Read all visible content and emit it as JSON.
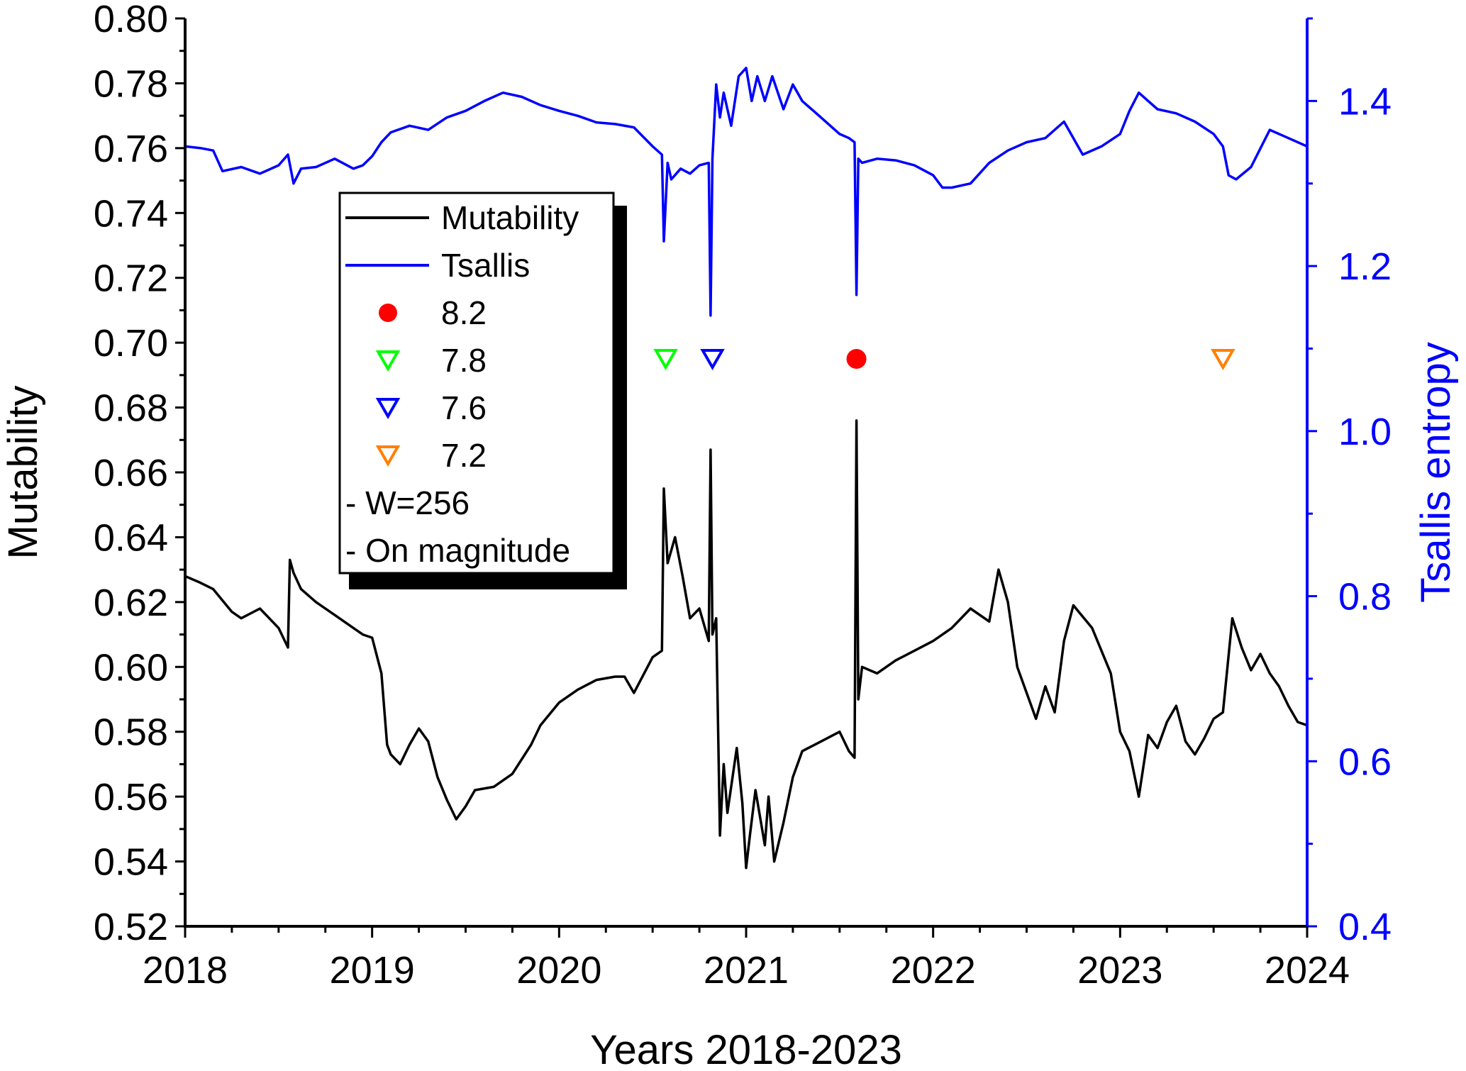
{
  "chart_data": {
    "type": "line",
    "xlabel": "Years 2018-2023",
    "ylabel_left": "Mutability",
    "ylabel_right": "Tsallis entropy",
    "x_ticks": [
      "2018",
      "2019",
      "2020",
      "2021",
      "2022",
      "2023",
      "2024"
    ],
    "xlim": [
      2018,
      2024
    ],
    "ylim_left": [
      0.52,
      0.8
    ],
    "ylim_right": [
      0.4,
      1.5
    ],
    "y_ticks_left": [
      "0.52",
      "0.54",
      "0.56",
      "0.58",
      "0.60",
      "0.62",
      "0.64",
      "0.66",
      "0.68",
      "0.70",
      "0.72",
      "0.74",
      "0.76",
      "0.78",
      "0.80"
    ],
    "y_ticks_right": [
      "0.4",
      "0.6",
      "0.8",
      "1.0",
      "1.2",
      "1.4"
    ],
    "grid": false,
    "legend_placement": "upper-left-center",
    "colors": {
      "mutability": "#000000",
      "tsallis": "#0000ff",
      "m82": "#ff0000",
      "m78": "#00ff00",
      "m76": "#0000ff",
      "m72": "#ff8000"
    },
    "series": [
      {
        "name": "Mutability",
        "axis": "left",
        "x": [
          2018.0,
          2018.08,
          2018.15,
          2018.25,
          2018.3,
          2018.4,
          2018.5,
          2018.55,
          2018.56,
          2018.58,
          2018.62,
          2018.7,
          2018.8,
          2018.9,
          2018.95,
          2019.0,
          2019.05,
          2019.08,
          2019.1,
          2019.15,
          2019.2,
          2019.25,
          2019.3,
          2019.35,
          2019.4,
          2019.45,
          2019.5,
          2019.55,
          2019.65,
          2019.75,
          2019.85,
          2019.9,
          2020.0,
          2020.1,
          2020.2,
          2020.3,
          2020.35,
          2020.4,
          2020.5,
          2020.55,
          2020.56,
          2020.58,
          2020.62,
          2020.66,
          2020.7,
          2020.75,
          2020.8,
          2020.81,
          2020.82,
          2020.84,
          2020.86,
          2020.88,
          2020.9,
          2020.95,
          2020.98,
          2021.0,
          2021.02,
          2021.05,
          2021.1,
          2021.12,
          2021.15,
          2021.2,
          2021.25,
          2021.3,
          2021.4,
          2021.5,
          2021.55,
          2021.58,
          2021.59,
          2021.6,
          2021.61,
          2021.62,
          2021.7,
          2021.8,
          2021.9,
          2022.0,
          2022.1,
          2022.2,
          2022.3,
          2022.35,
          2022.4,
          2022.45,
          2022.5,
          2022.55,
          2022.6,
          2022.65,
          2022.7,
          2022.75,
          2022.85,
          2022.95,
          2023.0,
          2023.05,
          2023.1,
          2023.15,
          2023.2,
          2023.25,
          2023.3,
          2023.35,
          2023.4,
          2023.45,
          2023.5,
          2023.55,
          2023.6,
          2023.65,
          2023.7,
          2023.75,
          2023.8,
          2023.85,
          2023.9,
          2023.95,
          2024.0
        ],
        "values": [
          0.628,
          0.626,
          0.624,
          0.617,
          0.615,
          0.618,
          0.612,
          0.606,
          0.633,
          0.629,
          0.624,
          0.62,
          0.616,
          0.612,
          0.61,
          0.609,
          0.598,
          0.576,
          0.573,
          0.57,
          0.576,
          0.581,
          0.577,
          0.566,
          0.559,
          0.553,
          0.557,
          0.562,
          0.563,
          0.567,
          0.576,
          0.582,
          0.589,
          0.593,
          0.596,
          0.597,
          0.597,
          0.592,
          0.603,
          0.605,
          0.655,
          0.632,
          0.64,
          0.628,
          0.615,
          0.618,
          0.608,
          0.667,
          0.61,
          0.615,
          0.548,
          0.57,
          0.555,
          0.575,
          0.558,
          0.538,
          0.548,
          0.562,
          0.545,
          0.56,
          0.54,
          0.552,
          0.566,
          0.574,
          0.577,
          0.58,
          0.574,
          0.572,
          0.676,
          0.59,
          0.595,
          0.6,
          0.598,
          0.602,
          0.605,
          0.608,
          0.612,
          0.618,
          0.614,
          0.63,
          0.62,
          0.6,
          0.592,
          0.584,
          0.594,
          0.586,
          0.608,
          0.619,
          0.612,
          0.598,
          0.58,
          0.574,
          0.56,
          0.579,
          0.575,
          0.583,
          0.588,
          0.577,
          0.573,
          0.578,
          0.584,
          0.586,
          0.615,
          0.606,
          0.599,
          0.604,
          0.598,
          0.594,
          0.588,
          0.583,
          0.582
        ]
      },
      {
        "name": "Tsallis",
        "axis": "right",
        "x": [
          2018.0,
          2018.08,
          2018.15,
          2018.2,
          2018.3,
          2018.4,
          2018.5,
          2018.55,
          2018.58,
          2018.62,
          2018.7,
          2018.8,
          2018.9,
          2018.95,
          2019.0,
          2019.05,
          2019.1,
          2019.2,
          2019.3,
          2019.4,
          2019.5,
          2019.6,
          2019.7,
          2019.8,
          2019.9,
          2020.0,
          2020.1,
          2020.2,
          2020.3,
          2020.4,
          2020.5,
          2020.55,
          2020.56,
          2020.58,
          2020.6,
          2020.65,
          2020.7,
          2020.75,
          2020.8,
          2020.81,
          2020.82,
          2020.84,
          2020.86,
          2020.88,
          2020.92,
          2020.96,
          2021.0,
          2021.03,
          2021.06,
          2021.1,
          2021.14,
          2021.2,
          2021.25,
          2021.3,
          2021.4,
          2021.5,
          2021.55,
          2021.58,
          2021.59,
          2021.6,
          2021.62,
          2021.7,
          2021.8,
          2021.9,
          2022.0,
          2022.05,
          2022.1,
          2022.2,
          2022.3,
          2022.4,
          2022.5,
          2022.6,
          2022.7,
          2022.8,
          2022.9,
          2023.0,
          2023.05,
          2023.1,
          2023.15,
          2023.2,
          2023.3,
          2023.4,
          2023.5,
          2023.55,
          2023.58,
          2023.62,
          2023.7,
          2023.8,
          2023.9,
          2024.0
        ],
        "values": [
          1.345,
          1.343,
          1.34,
          1.315,
          1.32,
          1.312,
          1.322,
          1.335,
          1.3,
          1.318,
          1.32,
          1.33,
          1.318,
          1.322,
          1.333,
          1.35,
          1.362,
          1.37,
          1.365,
          1.38,
          1.388,
          1.4,
          1.41,
          1.405,
          1.395,
          1.388,
          1.382,
          1.374,
          1.372,
          1.368,
          1.345,
          1.335,
          1.23,
          1.325,
          1.305,
          1.318,
          1.312,
          1.322,
          1.325,
          1.14,
          1.33,
          1.42,
          1.38,
          1.41,
          1.37,
          1.43,
          1.44,
          1.4,
          1.43,
          1.4,
          1.43,
          1.39,
          1.42,
          1.4,
          1.38,
          1.36,
          1.355,
          1.35,
          1.165,
          1.33,
          1.325,
          1.33,
          1.328,
          1.322,
          1.31,
          1.295,
          1.295,
          1.3,
          1.325,
          1.34,
          1.35,
          1.355,
          1.375,
          1.335,
          1.345,
          1.36,
          1.388,
          1.41,
          1.4,
          1.39,
          1.385,
          1.375,
          1.36,
          1.345,
          1.31,
          1.305,
          1.32,
          1.365,
          1.355,
          1.345
        ]
      }
    ],
    "markers": [
      {
        "label": "8.2",
        "shape": "circle",
        "color": "#ff0000",
        "x": 2021.59,
        "y": 0.695
      },
      {
        "label": "7.8",
        "shape": "triangle-down",
        "color": "#00ff00",
        "x": 2020.57,
        "y": 0.695
      },
      {
        "label": "7.6",
        "shape": "triangle-down",
        "color": "#0000ff",
        "x": 2020.82,
        "y": 0.695
      },
      {
        "label": "7.2",
        "shape": "triangle-down",
        "color": "#ff8000",
        "x": 2023.55,
        "y": 0.695
      }
    ],
    "legend": [
      {
        "text": "Mutability",
        "kind": "line",
        "color": "#000000"
      },
      {
        "text": "Tsallis",
        "kind": "line",
        "color": "#0000ff"
      },
      {
        "text": "8.2",
        "kind": "circle",
        "color": "#ff0000"
      },
      {
        "text": "7.8",
        "kind": "triangle-down",
        "color": "#00ff00"
      },
      {
        "text": "7.6",
        "kind": "triangle-down",
        "color": "#0000ff"
      },
      {
        "text": "7.2",
        "kind": "triangle-down",
        "color": "#ff8000"
      },
      {
        "text": "- W=256",
        "kind": "text"
      },
      {
        "text": "- On magnitude",
        "kind": "text"
      }
    ]
  }
}
